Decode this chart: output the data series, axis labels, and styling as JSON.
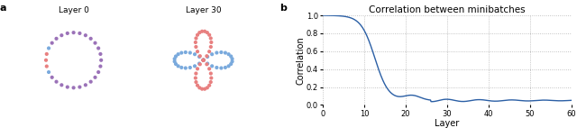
{
  "fig_width": 6.4,
  "fig_height": 1.42,
  "dpi": 100,
  "panel_a_label": "a",
  "panel_b_label": "b",
  "layer0_title": "Layer 0",
  "layer30_title": "Layer 30",
  "plot_title": "Correlation between minibatches",
  "xlabel": "Layer",
  "ylabel": "Correlation",
  "circle_color_purple": "#9b72b8",
  "circle_color_red": "#e88080",
  "circle_color_blue": "#7aaadd",
  "ylim": [
    0.0,
    1.0
  ],
  "xlim": [
    0,
    60
  ],
  "xticks": [
    0,
    10,
    20,
    30,
    40,
    50,
    60
  ],
  "yticks": [
    0.0,
    0.2,
    0.4,
    0.6,
    0.8,
    1.0
  ],
  "line_color": "#2b5fa5",
  "grid_color": "#aaaaaa",
  "background_color": "#ffffff",
  "tick_fontsize": 6,
  "axis_fontsize": 7,
  "title_fontsize": 7.5
}
